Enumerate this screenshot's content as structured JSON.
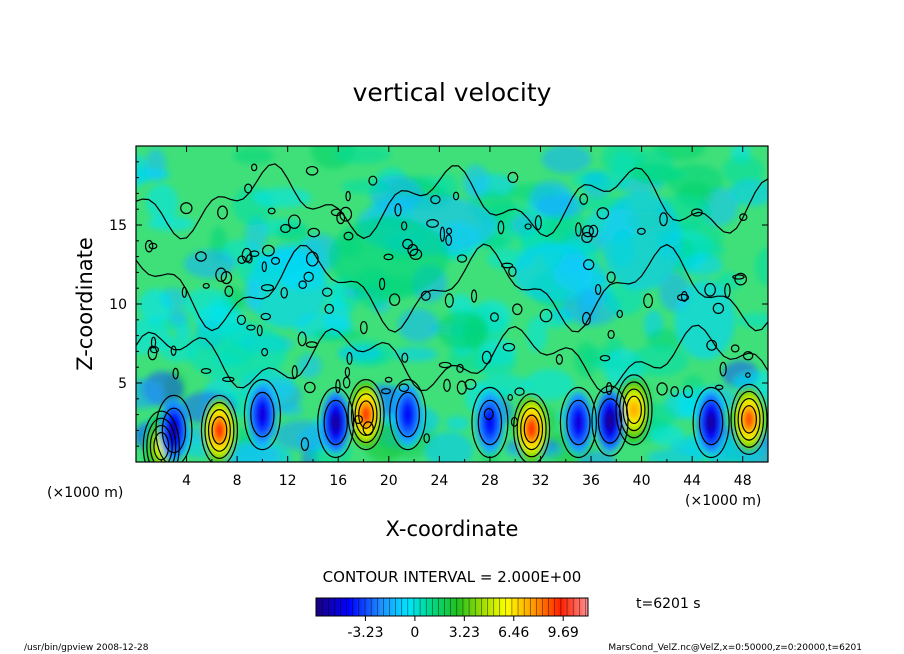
{
  "chart_data": {
    "type": "heatmap",
    "title": "vertical velocity",
    "xlabel": "X-coordinate",
    "ylabel": "Z-coordinate",
    "x_unit_left": "(×1000 m)",
    "x_unit_right": "(×1000 m)",
    "xlim": [
      0,
      50
    ],
    "ylim": [
      0,
      20
    ],
    "x_ticks": [
      "4",
      "8",
      "12",
      "16",
      "20",
      "24",
      "28",
      "32",
      "36",
      "40",
      "44",
      "48"
    ],
    "y_ticks": [
      "5",
      "10",
      "15"
    ],
    "contour_interval_text": "CONTOUR INTERVAL = 2.000E+00",
    "time_text": "t=6201 s",
    "colorbar": {
      "ticks": [
        "-3.23",
        "0",
        "3.23",
        "6.46",
        "9.69"
      ],
      "range": [
        -6.46,
        11.31
      ]
    },
    "features": [
      {
        "x": 2.0,
        "z": 1.0,
        "value": 5.5
      },
      {
        "x": 6.6,
        "z": 2.0,
        "value": 9.5
      },
      {
        "x": 18.2,
        "z": 3.0,
        "value": 9.3
      },
      {
        "x": 31.3,
        "z": 2.1,
        "value": 9.6
      },
      {
        "x": 39.4,
        "z": 3.3,
        "value": 7.5
      },
      {
        "x": 48.5,
        "z": 2.7,
        "value": 9.0
      },
      {
        "x": 3.0,
        "z": 2.0,
        "value": -5.5
      },
      {
        "x": 10.0,
        "z": 3.0,
        "value": -5.0
      },
      {
        "x": 15.8,
        "z": 2.5,
        "value": -6.0
      },
      {
        "x": 21.5,
        "z": 3.0,
        "value": -4.5
      },
      {
        "x": 28.0,
        "z": 2.5,
        "value": -4.5
      },
      {
        "x": 35.0,
        "z": 2.5,
        "value": -5.0
      },
      {
        "x": 37.5,
        "z": 2.6,
        "value": -6.2
      },
      {
        "x": 45.5,
        "z": 2.5,
        "value": -6.0
      }
    ],
    "footer_left": "/usr/bin/gpview   2008-12-28",
    "footer_right": "MarsCond_VelZ.nc@VelZ,x=0:50000,z=0:20000,t=6201"
  }
}
